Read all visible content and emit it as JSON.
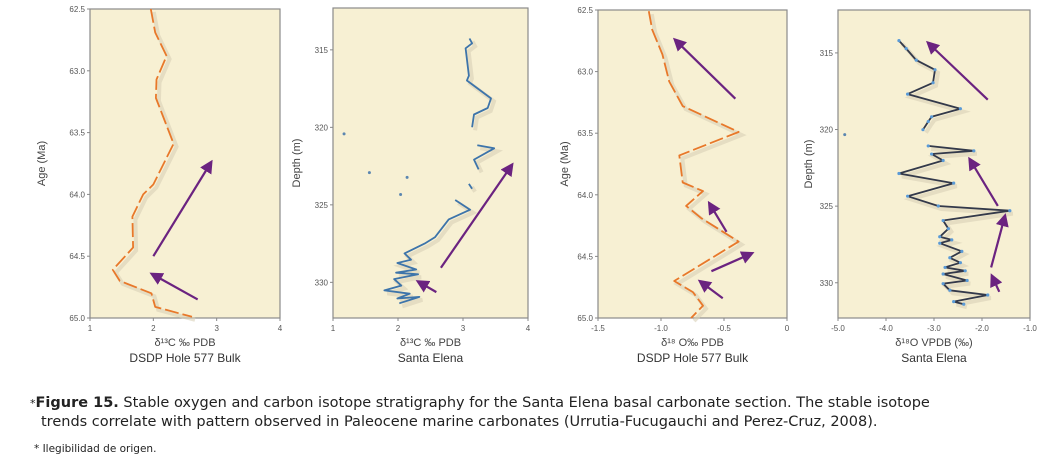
{
  "chart_data": [
    {
      "type": "line",
      "ylabel": "Age (Ma)",
      "xlabel": "δ¹³C ‰ PDB",
      "subtitle": "DSDP Hole 577 Bulk",
      "xlim": [
        1,
        4
      ],
      "ylim": [
        62.5,
        65.0
      ],
      "y_inverted": true,
      "xticks": [
        {
          "v": 1,
          "label": "1"
        },
        {
          "v": 2,
          "label": "2"
        },
        {
          "v": 3,
          "label": "3"
        },
        {
          "v": 4,
          "label": "4"
        }
      ],
      "yticks": [
        {
          "v": 62.5,
          "label": "62.5"
        },
        {
          "v": 63.0,
          "label": "63.0"
        },
        {
          "v": 63.5,
          "label": "63.5"
        },
        {
          "v": 64.0,
          "label": "64.0"
        },
        {
          "v": 64.5,
          "label": "64.5"
        },
        {
          "v": 65.0,
          "label": "65.0"
        }
      ],
      "series": [
        {
          "name": "δ13C bulk",
          "style": "dashed",
          "color": "#e8782a",
          "segments": [
            [
              [
                1.96,
                62.5
              ],
              [
                2.03,
                62.69
              ],
              [
                2.21,
                62.88
              ],
              [
                2.05,
                63.07
              ],
              [
                2.04,
                63.22
              ],
              [
                2.32,
                63.59
              ],
              [
                2.0,
                63.92
              ],
              [
                1.84,
                64.0
              ],
              [
                1.67,
                64.18
              ],
              [
                1.68,
                64.43
              ],
              [
                1.36,
                64.61
              ],
              [
                1.47,
                64.7
              ],
              [
                1.97,
                64.8
              ],
              [
                2.03,
                64.91
              ],
              [
                2.61,
                64.99
              ]
            ]
          ]
        }
      ],
      "points": [],
      "arrows": [
        [
          [
            2.0,
            64.5
          ],
          [
            2.9,
            63.75
          ]
        ],
        [
          [
            2.7,
            64.85
          ],
          [
            2.0,
            64.65
          ]
        ]
      ]
    },
    {
      "type": "line",
      "ylabel": "Depth (m)",
      "xlabel": "δ¹³C ‰ PDB",
      "subtitle": "Santa Elena",
      "xlim": [
        1,
        4
      ],
      "ylim": [
        312.3,
        332.3
      ],
      "y_inverted": true,
      "xticks": [
        {
          "v": 1,
          "label": "1"
        },
        {
          "v": 2,
          "label": "2"
        },
        {
          "v": 3,
          "label": "3"
        },
        {
          "v": 4,
          "label": "4"
        }
      ],
      "yticks": [
        {
          "v": 315,
          "label": "315"
        },
        {
          "v": 320,
          "label": "320"
        },
        {
          "v": 325,
          "label": "325"
        },
        {
          "v": 330,
          "label": "330"
        }
      ],
      "series": [
        {
          "name": "δ13C Santa Elena",
          "style": "solid",
          "color": "#3d74aa",
          "segments": [
            [
              [
                3.1,
                314.27
              ],
              [
                3.14,
                314.58
              ],
              [
                3.04,
                314.9
              ],
              [
                3.09,
                316.67
              ],
              [
                3.06,
                316.98
              ],
              [
                3.43,
                318.13
              ],
              [
                3.38,
                318.75
              ],
              [
                3.17,
                319.17
              ],
              [
                3.14,
                320.0
              ]
            ],
            [
              [
                3.22,
                321.15
              ],
              [
                3.48,
                321.35
              ],
              [
                3.17,
                322.08
              ],
              [
                3.24,
                322.71
              ]
            ],
            [
              [
                3.09,
                323.65
              ],
              [
                3.14,
                323.96
              ]
            ],
            [
              [
                2.88,
                324.69
              ],
              [
                3.11,
                325.31
              ],
              [
                2.78,
                325.94
              ],
              [
                2.57,
                327.08
              ],
              [
                2.41,
                327.5
              ],
              [
                2.1,
                328.13
              ],
              [
                2.2,
                328.54
              ],
              [
                1.99,
                328.75
              ],
              [
                2.28,
                329.17
              ],
              [
                1.97,
                329.38
              ],
              [
                2.31,
                329.48
              ],
              [
                1.94,
                329.79
              ],
              [
                2.05,
                330.21
              ],
              [
                1.79,
                330.52
              ],
              [
                2.18,
                330.73
              ],
              [
                1.99,
                331.04
              ],
              [
                2.33,
                330.94
              ],
              [
                2.02,
                331.35
              ]
            ]
          ]
        }
      ],
      "points": [
        [
          1.17,
          320.42
        ],
        [
          1.56,
          322.92
        ],
        [
          2.14,
          323.23
        ],
        [
          2.04,
          324.33
        ]
      ],
      "arrows": [
        [
          [
            2.66,
            329.06
          ],
          [
            3.74,
            322.5
          ]
        ],
        [
          [
            2.59,
            330.63
          ],
          [
            2.33,
            330.0
          ]
        ]
      ]
    },
    {
      "type": "line",
      "ylabel": "Age (Ma)",
      "xlabel": "δ¹⁸ O‰ PDB",
      "subtitle": "DSDP Hole 577 Bulk",
      "xlim": [
        -1.5,
        0
      ],
      "ylim": [
        62.5,
        65.0
      ],
      "y_inverted": true,
      "xticks": [
        {
          "v": -1.5,
          "label": "-1.5"
        },
        {
          "v": -1.0,
          "label": "-1.0"
        },
        {
          "v": -0.5,
          "label": "-0.5"
        },
        {
          "v": 0,
          "label": "0"
        }
      ],
      "yticks": [
        {
          "v": 62.5,
          "label": "62.5"
        },
        {
          "v": 63.0,
          "label": "63.0"
        },
        {
          "v": 63.5,
          "label": "63.5"
        },
        {
          "v": 64.0,
          "label": "64.0"
        },
        {
          "v": 64.5,
          "label": "64.5"
        },
        {
          "v": 65.0,
          "label": "65.0"
        }
      ],
      "series": [
        {
          "name": "δ18O bulk",
          "style": "dashed",
          "color": "#e8782a",
          "segments": [
            [
              [
                -1.097,
                62.51
              ],
              [
                -1.07,
                62.66
              ],
              [
                -0.989,
                62.86
              ],
              [
                -0.935,
                63.08
              ],
              [
                -0.828,
                63.28
              ],
              [
                -0.384,
                63.49
              ],
              [
                -0.855,
                63.68
              ],
              [
                -0.828,
                63.9
              ],
              [
                -0.667,
                63.97
              ],
              [
                -0.801,
                64.09
              ],
              [
                -0.68,
                64.19
              ],
              [
                -0.384,
                64.38
              ],
              [
                -0.895,
                64.7
              ],
              [
                -0.747,
                64.79
              ],
              [
                -0.667,
                64.9
              ],
              [
                -0.761,
                65.0
              ]
            ]
          ]
        }
      ],
      "points": [],
      "arrows": [
        [
          [
            -0.41,
            63.22
          ],
          [
            -0.88,
            62.75
          ]
        ],
        [
          [
            -0.48,
            64.3
          ],
          [
            -0.61,
            64.08
          ]
        ],
        [
          [
            -0.6,
            64.62
          ],
          [
            -0.29,
            64.48
          ]
        ],
        [
          [
            -0.51,
            64.84
          ],
          [
            -0.68,
            64.71
          ]
        ]
      ]
    },
    {
      "type": "line",
      "ylabel": "Depth (m)",
      "xlabel": "δ¹⁸O VPDB (‰)",
      "subtitle": "Santa Elena",
      "xlim": [
        -5.0,
        -1.0
      ],
      "ylim": [
        312.2,
        332.3
      ],
      "y_inverted": true,
      "xticks": [
        {
          "v": -5,
          "label": "-5.0"
        },
        {
          "v": -4,
          "label": "-4.0"
        },
        {
          "v": -3,
          "label": "-3.0"
        },
        {
          "v": -2,
          "label": "-2.0"
        },
        {
          "v": -1,
          "label": "-1.0"
        }
      ],
      "yticks": [
        {
          "v": 315,
          "label": "315"
        },
        {
          "v": 320,
          "label": "320"
        },
        {
          "v": 325,
          "label": "325"
        },
        {
          "v": 330,
          "label": "330"
        }
      ],
      "series": [
        {
          "name": "δ18O Santa Elena",
          "style": "solid-markers",
          "color": "#33394a",
          "marker_color": "#5a9ad6",
          "segments": [
            [
              [
                -3.73,
                314.2
              ],
              [
                -3.58,
                314.72
              ],
              [
                -3.37,
                315.47
              ],
              [
                -2.98,
                316.1
              ],
              [
                -3.02,
                316.95
              ],
              [
                -3.55,
                317.69
              ],
              [
                -2.45,
                318.64
              ],
              [
                -3.05,
                319.17
              ],
              [
                -3.12,
                319.48
              ],
              [
                -3.23,
                320.01
              ]
            ],
            [
              [
                -3.12,
                321.07
              ],
              [
                -2.17,
                321.39
              ],
              [
                -3.05,
                321.6
              ],
              [
                -2.81,
                322.02
              ],
              [
                -3.73,
                322.87
              ],
              [
                -2.59,
                323.5
              ],
              [
                -3.55,
                324.35
              ],
              [
                -2.91,
                324.99
              ],
              [
                -1.42,
                325.3
              ],
              [
                -2.81,
                325.94
              ],
              [
                -2.7,
                326.47
              ],
              [
                -2.88,
                327.0
              ],
              [
                -2.63,
                327.2
              ],
              [
                -2.88,
                327.42
              ],
              [
                -2.42,
                327.95
              ],
              [
                -2.67,
                328.37
              ],
              [
                -2.45,
                328.69
              ],
              [
                -2.77,
                329.0
              ],
              [
                -2.35,
                329.22
              ],
              [
                -2.81,
                329.43
              ],
              [
                -2.31,
                329.85
              ],
              [
                -2.81,
                330.06
              ],
              [
                -2.67,
                330.49
              ],
              [
                -1.88,
                330.8
              ],
              [
                -2.59,
                331.23
              ],
              [
                -2.38,
                331.4
              ]
            ]
          ]
        }
      ],
      "points": [
        [
          -4.86,
          320.33
        ]
      ],
      "arrows": [
        [
          [
            -1.88,
            318.05
          ],
          [
            -3.1,
            314.41
          ]
        ],
        [
          [
            -1.67,
            324.99
          ],
          [
            -2.24,
            322.02
          ]
        ],
        [
          [
            -1.81,
            329.0
          ],
          [
            -1.53,
            325.73
          ]
        ],
        [
          [
            -1.64,
            330.59
          ],
          [
            -1.78,
            329.64
          ]
        ]
      ]
    }
  ],
  "colors": {
    "plot_bg": "#f7f0d3",
    "arrow": "#6b2380",
    "frame": "#8a8a8a"
  },
  "caption": {
    "asterisk": "*",
    "label": "Figure 15.",
    "line1": " Stable oxygen and carbon isotope stratigraphy for the Santa Elena basal carbonate section. The stable isotope",
    "line2": "trends correlate with pattern observed in Paleocene marine carbonates (Urrutia-Fucugauchi and Perez-Cruz, 2008)."
  },
  "footnote": "* Ilegibilidad de origen."
}
